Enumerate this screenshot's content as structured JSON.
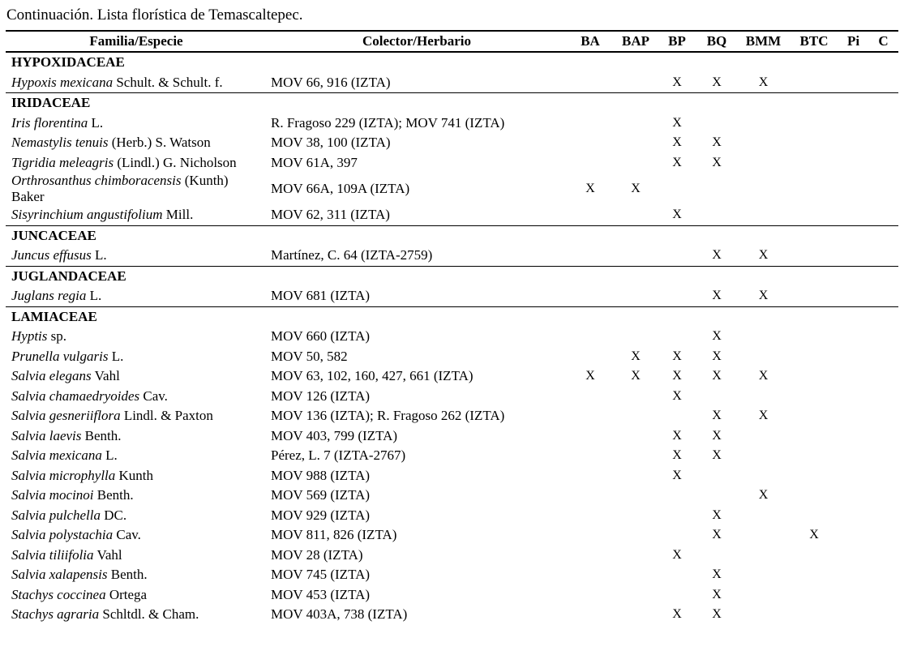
{
  "title": "Continuación. Lista florística de Temascaltepec.",
  "mark_glyph": "X",
  "colors": {
    "text": "#000000",
    "background": "#ffffff",
    "rule": "#000000"
  },
  "table": {
    "header": {
      "species": "Familia/Especie",
      "collector": "Colector/Herbario"
    },
    "habitat_columns": [
      "BA",
      "BAP",
      "BP",
      "BQ",
      "BMM",
      "BTC",
      "Pi",
      "C"
    ],
    "families": [
      {
        "name": "HYPOXIDACEAE",
        "species": [
          {
            "name_italic": "Hypoxis mexicana",
            "name_roman": "Schult. & Schult. f.",
            "collector": "MOV 66, 916 (IZTA)",
            "marks": [
              "BP",
              "BQ",
              "BMM"
            ]
          }
        ]
      },
      {
        "name": "IRIDACEAE",
        "species": [
          {
            "name_italic": "Iris florentina",
            "name_roman": "L.",
            "collector": "R. Fragoso 229 (IZTA); MOV 741 (IZTA)",
            "marks": [
              "BP"
            ]
          },
          {
            "name_italic": "Nemastylis tenuis",
            "name_roman": "(Herb.) S. Watson",
            "collector": "MOV 38, 100 (IZTA)",
            "marks": [
              "BP",
              "BQ"
            ]
          },
          {
            "name_italic": "Tigridia meleagris",
            "name_roman": "(Lindl.) G. Nicholson",
            "collector": "MOV 61A, 397",
            "marks": [
              "BP",
              "BQ"
            ]
          },
          {
            "name_italic": "Orthrosanthus chimboracensis",
            "name_roman": "(Kunth)\nBaker",
            "collector": "MOV 66A, 109A (IZTA)",
            "marks": [
              "BA",
              "BAP"
            ]
          },
          {
            "name_italic": "Sisyrinchium angustifolium",
            "name_roman": "Mill.",
            "collector": "MOV 62, 311 (IZTA)",
            "marks": [
              "BP"
            ]
          }
        ]
      },
      {
        "name": "JUNCACEAE",
        "species": [
          {
            "name_italic": "Juncus effusus",
            "name_roman": "L.",
            "collector": "Martínez, C. 64 (IZTA-2759)",
            "marks": [
              "BQ",
              "BMM"
            ]
          }
        ]
      },
      {
        "name": "JUGLANDACEAE",
        "species": [
          {
            "name_italic": "Juglans regia",
            "name_roman": "L.",
            "collector": "MOV 681 (IZTA)",
            "marks": [
              "BQ",
              "BMM"
            ]
          }
        ]
      },
      {
        "name": "LAMIACEAE",
        "species": [
          {
            "name_italic": "Hyptis",
            "name_roman": "sp.",
            "collector": "MOV 660 (IZTA)",
            "marks": [
              "BQ"
            ]
          },
          {
            "name_italic": "Prunella vulgaris",
            "name_roman": "L.",
            "collector": "MOV 50, 582",
            "marks": [
              "BAP",
              "BP",
              "BQ"
            ]
          },
          {
            "name_italic": "Salvia elegans",
            "name_roman": "Vahl",
            "collector": "MOV 63, 102, 160, 427, 661 (IZTA)",
            "marks": [
              "BA",
              "BAP",
              "BP",
              "BQ",
              "BMM"
            ]
          },
          {
            "name_italic": "Salvia chamaedryoides",
            "name_roman": "Cav.",
            "collector": "MOV 126 (IZTA)",
            "marks": [
              "BP"
            ]
          },
          {
            "name_italic": "Salvia gesneriiflora",
            "name_roman": "Lindl. & Paxton",
            "collector": "MOV 136 (IZTA); R. Fragoso 262 (IZTA)",
            "marks": [
              "BQ",
              "BMM"
            ]
          },
          {
            "name_italic": "Salvia laevis",
            "name_roman": "Benth.",
            "collector": "MOV 403, 799 (IZTA)",
            "marks": [
              "BP",
              "BQ"
            ]
          },
          {
            "name_italic": "Salvia mexicana",
            "name_roman": "L.",
            "collector": "Pérez, L. 7 (IZTA-2767)",
            "marks": [
              "BP",
              "BQ"
            ]
          },
          {
            "name_italic": "Salvia microphylla",
            "name_roman": "Kunth",
            "collector": "MOV 988 (IZTA)",
            "marks": [
              "BP"
            ]
          },
          {
            "name_italic": "Salvia mocinoi",
            "name_roman": "Benth.",
            "collector": "MOV 569 (IZTA)",
            "marks": [
              "BMM"
            ]
          },
          {
            "name_italic": "Salvia pulchella",
            "name_roman": "DC.",
            "collector": "MOV 929 (IZTA)",
            "marks": [
              "BQ"
            ]
          },
          {
            "name_italic": "Salvia polystachia",
            "name_roman": "Cav.",
            "collector": "MOV 811, 826 (IZTA)",
            "marks": [
              "BQ",
              "BTC"
            ]
          },
          {
            "name_italic": "Salvia tiliifolia",
            "name_roman": "Vahl",
            "collector": "MOV 28 (IZTA)",
            "marks": [
              "BP"
            ]
          },
          {
            "name_italic": "Salvia xalapensis",
            "name_roman": "Benth.",
            "collector": "MOV 745 (IZTA)",
            "marks": [
              "BQ"
            ]
          },
          {
            "name_italic": "Stachys coccinea",
            "name_roman": "Ortega",
            "collector": "MOV 453 (IZTA)",
            "marks": [
              "BQ"
            ]
          },
          {
            "name_italic": "Stachys agraria",
            "name_roman": "Schltdl. & Cham.",
            "collector": "MOV 403A, 738 (IZTA)",
            "marks": [
              "BP",
              "BQ"
            ]
          }
        ]
      }
    ]
  }
}
